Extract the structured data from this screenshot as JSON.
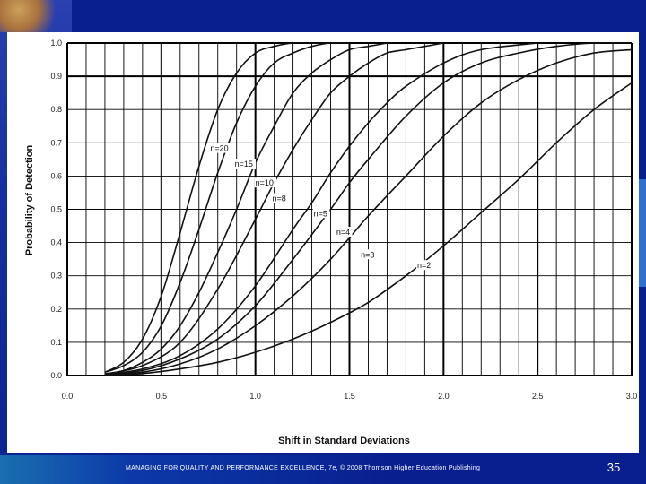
{
  "footer": {
    "text": "MANAGING FOR QUALITY AND PERFORMANCE EXCELLENCE, 7e, © 2008 Thomson Higher Education Publishing",
    "page_number": "35"
  },
  "chart_data": {
    "type": "line",
    "xlabel": "Shift in Standard Deviations",
    "ylabel": "Probability of Detection",
    "xlim": [
      0,
      3
    ],
    "ylim": [
      0,
      1
    ],
    "x_ticks": [
      "0.0",
      "0.5",
      "1.0",
      "1.5",
      "2.0",
      "2.5",
      "3.0"
    ],
    "y_ticks": [
      "0.0",
      "0.1",
      "0.2",
      "0.3",
      "0.4",
      "0.5",
      "0.6",
      "0.7",
      "0.8",
      "0.9",
      "1.0"
    ],
    "grid": true,
    "series": [
      {
        "name": "n=20",
        "x": [
          0.2,
          0.3,
          0.4,
          0.5,
          0.6,
          0.7,
          0.8,
          0.9,
          1.0,
          1.1,
          1.2,
          1.3,
          1.4
        ],
        "y": [
          0.01,
          0.04,
          0.11,
          0.24,
          0.43,
          0.63,
          0.8,
          0.91,
          0.97,
          0.99,
          1.0,
          1.0,
          1.0
        ]
      },
      {
        "name": "n=15",
        "x": [
          0.2,
          0.3,
          0.4,
          0.5,
          0.6,
          0.7,
          0.8,
          0.9,
          1.0,
          1.1,
          1.2,
          1.3,
          1.4,
          1.5
        ],
        "y": [
          0.01,
          0.03,
          0.07,
          0.15,
          0.28,
          0.44,
          0.61,
          0.76,
          0.87,
          0.94,
          0.97,
          0.99,
          1.0,
          1.0
        ]
      },
      {
        "name": "n=10",
        "x": [
          0.2,
          0.3,
          0.4,
          0.5,
          0.6,
          0.7,
          0.8,
          0.9,
          1.0,
          1.1,
          1.2,
          1.3,
          1.4,
          1.5,
          1.6,
          1.7
        ],
        "y": [
          0.005,
          0.015,
          0.04,
          0.08,
          0.15,
          0.25,
          0.37,
          0.5,
          0.64,
          0.75,
          0.85,
          0.91,
          0.95,
          0.98,
          0.99,
          1.0
        ]
      },
      {
        "name": "n=8",
        "x": [
          0.2,
          0.4,
          0.6,
          0.8,
          1.0,
          1.1,
          1.2,
          1.3,
          1.4,
          1.5,
          1.6,
          1.7,
          1.8,
          1.9,
          2.0
        ],
        "y": [
          0.004,
          0.03,
          0.1,
          0.26,
          0.47,
          0.58,
          0.68,
          0.77,
          0.85,
          0.9,
          0.94,
          0.97,
          0.98,
          0.99,
          1.0
        ]
      },
      {
        "name": "n=5",
        "x": [
          0.2,
          0.4,
          0.6,
          0.8,
          1.0,
          1.2,
          1.3,
          1.4,
          1.5,
          1.6,
          1.7,
          1.8,
          2.0,
          2.2,
          2.5
        ],
        "y": [
          0.003,
          0.02,
          0.06,
          0.14,
          0.27,
          0.44,
          0.52,
          0.61,
          0.69,
          0.76,
          0.82,
          0.87,
          0.94,
          0.98,
          1.0
        ]
      },
      {
        "name": "n=4",
        "x": [
          0.2,
          0.4,
          0.6,
          0.8,
          1.0,
          1.2,
          1.4,
          1.5,
          1.6,
          1.8,
          2.0,
          2.2,
          2.4,
          2.6,
          2.8,
          3.0
        ],
        "y": [
          0.002,
          0.015,
          0.05,
          0.11,
          0.21,
          0.35,
          0.5,
          0.58,
          0.65,
          0.78,
          0.88,
          0.94,
          0.97,
          0.99,
          1.0,
          1.0
        ]
      },
      {
        "name": "n=3",
        "x": [
          0.2,
          0.4,
          0.6,
          0.8,
          1.0,
          1.2,
          1.4,
          1.6,
          1.8,
          2.0,
          2.2,
          2.4,
          2.6,
          2.8,
          3.0
        ],
        "y": [
          0.002,
          0.01,
          0.035,
          0.08,
          0.15,
          0.24,
          0.35,
          0.48,
          0.6,
          0.72,
          0.82,
          0.89,
          0.94,
          0.97,
          0.98
        ]
      },
      {
        "name": "n=2",
        "x": [
          0.2,
          0.4,
          0.6,
          0.8,
          1.0,
          1.2,
          1.4,
          1.6,
          1.8,
          2.0,
          2.2,
          2.4,
          2.6,
          2.8,
          3.0
        ],
        "y": [
          0.001,
          0.006,
          0.02,
          0.04,
          0.07,
          0.11,
          0.16,
          0.22,
          0.3,
          0.39,
          0.49,
          0.59,
          0.7,
          0.8,
          0.88
        ]
      }
    ],
    "curve_labels": [
      {
        "text": "n=20",
        "x": 0.76,
        "y": 0.675
      },
      {
        "text": "n=15",
        "x": 0.89,
        "y": 0.628
      },
      {
        "text": "n=10",
        "x": 1.0,
        "y": 0.571
      },
      {
        "text": "n=8",
        "x": 1.09,
        "y": 0.524
      },
      {
        "text": "n=5",
        "x": 1.31,
        "y": 0.479
      },
      {
        "text": "n=4",
        "x": 1.43,
        "y": 0.423
      },
      {
        "text": "n=3",
        "x": 1.56,
        "y": 0.355
      },
      {
        "text": "n=2",
        "x": 1.86,
        "y": 0.323
      }
    ]
  }
}
